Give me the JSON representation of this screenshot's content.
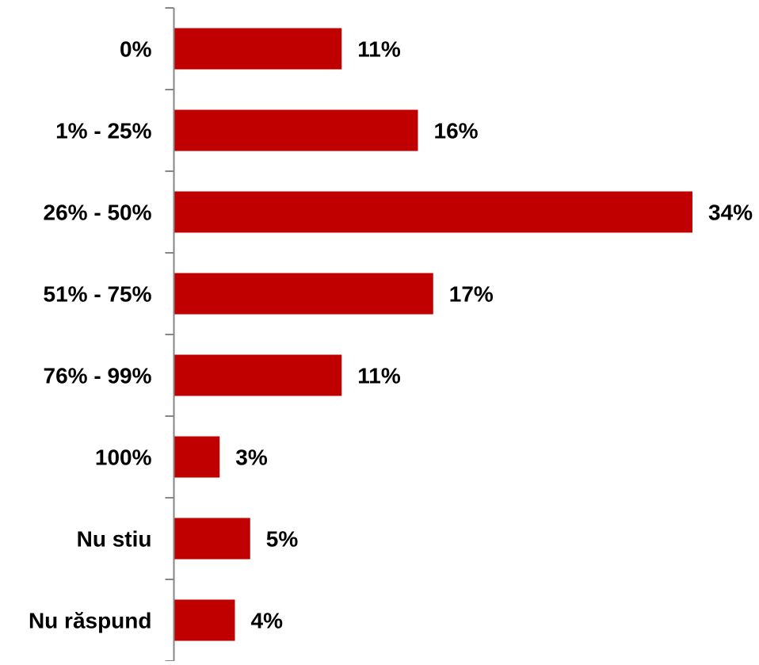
{
  "chart_data": {
    "type": "bar",
    "orientation": "horizontal",
    "categories": [
      "0%",
      "1% - 25%",
      "26% - 50%",
      "51% - 75%",
      "76% - 99%",
      "100%",
      "Nu stiu",
      "Nu răspund"
    ],
    "values": [
      11,
      16,
      34,
      17,
      11,
      3,
      5,
      4
    ],
    "value_labels": [
      "11%",
      "16%",
      "34%",
      "17%",
      "11%",
      "3%",
      "5%",
      "4%"
    ],
    "title": "",
    "xlabel": "",
    "ylabel": "",
    "xlim": [
      0,
      34
    ],
    "grid": false,
    "legend": "none",
    "bar_color": "#C00000",
    "axis_color": "#868686"
  }
}
